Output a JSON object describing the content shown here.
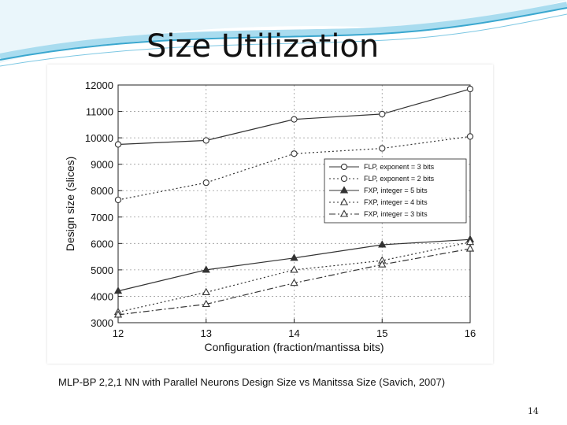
{
  "slide": {
    "title": "Size Utilization",
    "caption": "MLP-BP 2,2,1 NN with Parallel Neurons Design Size vs Manitssa Size  (Savich, 2007)",
    "page_number": "14"
  },
  "colors": {
    "wave_dark": "#3aa7cf",
    "wave_light": "#a9dcef",
    "series": "#333333",
    "grid": "#9a9a9a"
  },
  "chart_data": {
    "type": "line",
    "title": "",
    "xlabel": "Configuration (fraction/mantissa bits)",
    "ylabel": "Design size (slices)",
    "x": [
      12,
      13,
      14,
      15,
      16
    ],
    "x_ticks": [
      "12",
      "13",
      "14",
      "15",
      "16"
    ],
    "y_ticks": [
      "3000",
      "4000",
      "5000",
      "6000",
      "7000",
      "8000",
      "9000",
      "10000",
      "11000",
      "12000"
    ],
    "xlim": [
      12,
      16
    ],
    "ylim": [
      3000,
      12000
    ],
    "grid": true,
    "legend_position": "right",
    "series": [
      {
        "name": "FLP, exponent = 3 bits",
        "marker": "circle",
        "dash": "solid",
        "values": [
          9750,
          9900,
          10700,
          10900,
          11850
        ]
      },
      {
        "name": "FLP, exponent = 2 bits",
        "marker": "circle",
        "dash": "dotted",
        "values": [
          7650,
          8300,
          9400,
          9600,
          10050
        ]
      },
      {
        "name": "FXP, integer = 5 bits",
        "marker": "filled-triangle",
        "dash": "solid",
        "values": [
          4200,
          5000,
          5450,
          5950,
          6150
        ]
      },
      {
        "name": "FXP, integer = 4 bits",
        "marker": "triangle",
        "dash": "dotted",
        "values": [
          3400,
          4150,
          5000,
          5350,
          6050
        ]
      },
      {
        "name": "FXP, integer = 3 bits",
        "marker": "triangle",
        "dash": "dashdot",
        "values": [
          3300,
          3700,
          4500,
          5200,
          5800
        ]
      }
    ]
  }
}
